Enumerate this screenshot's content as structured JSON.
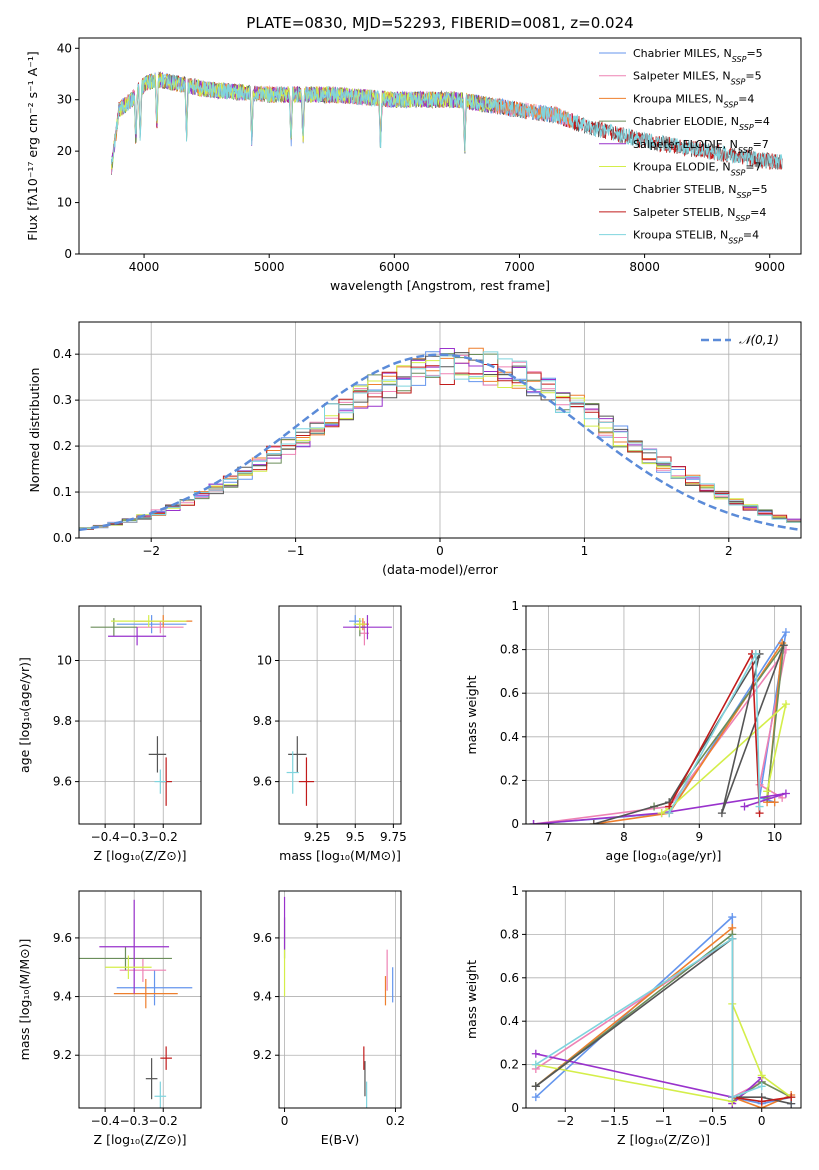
{
  "figure_title": "PLATE=0830, MJD=52293, FIBERID=0081, z=0.024",
  "colors": [
    "#6495ed",
    "#ee82b4",
    "#ee7f2d",
    "#6b8e5a",
    "#9932cc",
    "#d4ee4a",
    "#555555",
    "#c11b1b",
    "#7fd4de"
  ],
  "chart_data": [
    {
      "id": "spectrum",
      "type": "line",
      "title": "PLATE=0830, MJD=52293, FIBERID=0081, z=0.024",
      "xlabel": "wavelength [Angstrom, rest frame]",
      "ylabel": "Flux [fλ10⁻¹⁷ erg cm⁻² s⁻¹ A⁻¹]",
      "xlim": [
        3480,
        9250
      ],
      "ylim": [
        0,
        42
      ],
      "xticks": [
        4000,
        5000,
        6000,
        7000,
        8000,
        9000
      ],
      "yticks": [
        0,
        10,
        20,
        30,
        40
      ],
      "legend_position": "top-right",
      "series": [
        {
          "name": "Chabrier MILES, N_SSP=5",
          "x_range": [
            3740,
            7420
          ]
        },
        {
          "name": "Salpeter MILES, N_SSP=5",
          "x_range": [
            3740,
            7420
          ]
        },
        {
          "name": "Kroupa MILES, N_SSP=4",
          "x_range": [
            3740,
            7420
          ]
        },
        {
          "name": "Chabrier ELODIE, N_SSP=4",
          "x_range": [
            3740,
            6800
          ]
        },
        {
          "name": "Salpeter ELODIE, N_SSP=7",
          "x_range": [
            3740,
            6800
          ]
        },
        {
          "name": "Kroupa ELODIE, N_SSP=7",
          "x_range": [
            3740,
            6800
          ]
        },
        {
          "name": "Chabrier STELIB, N_SSP=5",
          "x_range": [
            3740,
            9100
          ]
        },
        {
          "name": "Salpeter STELIB, N_SSP=4",
          "x_range": [
            3740,
            9100
          ]
        },
        {
          "name": "Kroupa STELIB, N_SSP=4",
          "x_range": [
            3740,
            9100
          ]
        }
      ],
      "continuum_points": [
        [
          3740,
          17
        ],
        [
          3800,
          28
        ],
        [
          3900,
          30
        ],
        [
          4000,
          33
        ],
        [
          4100,
          34
        ],
        [
          4300,
          33
        ],
        [
          4500,
          32
        ],
        [
          5000,
          31
        ],
        [
          5500,
          31
        ],
        [
          6000,
          30
        ],
        [
          6500,
          30
        ],
        [
          7000,
          28
        ],
        [
          7300,
          27
        ],
        [
          7500,
          25
        ],
        [
          8000,
          22
        ],
        [
          8500,
          20
        ],
        [
          9000,
          18
        ],
        [
          9100,
          18
        ]
      ]
    },
    {
      "id": "residuals",
      "type": "histogram",
      "xlabel": "(data-model)/error",
      "ylabel": "Normed distribution",
      "xlim": [
        -2.5,
        2.5
      ],
      "ylim": [
        0,
        0.47
      ],
      "xticks": [
        -2,
        -1,
        0,
        1,
        2
      ],
      "yticks": [
        0.0,
        0.1,
        0.2,
        0.3,
        0.4
      ],
      "legend": "𝒩(0,1)",
      "gaussian": {
        "mean": 0,
        "sigma": 1
      },
      "bin_width": 0.1
    },
    {
      "id": "age_vs_Z",
      "type": "scatter",
      "xlabel": "Z [log₁₀(Z/Z⊙)]",
      "ylabel": "age  [log₁₀(age/yr)]",
      "xlim": [
        -0.49,
        -0.07
      ],
      "ylim": [
        9.46,
        10.18
      ],
      "xticks": [
        -0.4,
        -0.3,
        -0.2
      ],
      "yticks": [
        9.6,
        9.8,
        10.0
      ],
      "points": [
        {
          "x": -0.24,
          "y": 10.12,
          "xerr": 0.12,
          "yerr": 0.03
        },
        {
          "x": -0.21,
          "y": 10.11,
          "xerr": 0.08,
          "yerr": 0.02
        },
        {
          "x": -0.2,
          "y": 10.13,
          "xerr": 0.1,
          "yerr": 0.02
        },
        {
          "x": -0.37,
          "y": 10.11,
          "xerr": 0.08,
          "yerr": 0.03
        },
        {
          "x": -0.29,
          "y": 10.08,
          "xerr": 0.1,
          "yerr": 0.03
        },
        {
          "x": -0.25,
          "y": 10.13,
          "xerr": 0.13,
          "yerr": 0.02
        },
        {
          "x": -0.22,
          "y": 9.69,
          "xerr": 0.03,
          "yerr": 0.06
        },
        {
          "x": -0.19,
          "y": 9.6,
          "xerr": 0.02,
          "yerr": 0.08
        },
        {
          "x": -0.21,
          "y": 9.6,
          "xerr": 0.02,
          "yerr": 0.04
        }
      ]
    },
    {
      "id": "age_vs_mass",
      "type": "scatter",
      "xlabel": "mass [log₁₀(M/M⊙)]",
      "ylabel": "",
      "xlim": [
        9.0,
        9.8
      ],
      "ylim": [
        9.46,
        10.18
      ],
      "xticks": [
        9.25,
        9.5,
        9.75
      ],
      "yticks": [
        9.6,
        9.8,
        10.0
      ],
      "points": [
        {
          "x": 9.5,
          "y": 10.13,
          "xerr": 0.04,
          "yerr": 0.02
        },
        {
          "x": 9.56,
          "y": 10.09,
          "xerr": 0.03,
          "yerr": 0.04
        },
        {
          "x": 9.55,
          "y": 10.12,
          "xerr": 0.04,
          "yerr": 0.02
        },
        {
          "x": 9.53,
          "y": 10.11,
          "xerr": 0.04,
          "yerr": 0.03
        },
        {
          "x": 9.58,
          "y": 10.11,
          "xerr": 0.16,
          "yerr": 0.04
        },
        {
          "x": 9.53,
          "y": 10.12,
          "xerr": 0.04,
          "yerr": 0.02
        },
        {
          "x": 9.12,
          "y": 9.69,
          "xerr": 0.06,
          "yerr": 0.06
        },
        {
          "x": 9.18,
          "y": 9.6,
          "xerr": 0.05,
          "yerr": 0.08
        },
        {
          "x": 9.09,
          "y": 9.63,
          "xerr": 0.04,
          "yerr": 0.07
        }
      ]
    },
    {
      "id": "weight_vs_age",
      "type": "line",
      "xlabel": "age  [log₁₀(age/yr)]",
      "ylabel": "mass weight",
      "xlim": [
        6.7,
        10.35
      ],
      "ylim": [
        0,
        1
      ],
      "xticks": [
        7,
        8,
        9,
        10
      ],
      "yticks": [
        0.0,
        0.2,
        0.4,
        0.6,
        0.8,
        1.0
      ],
      "series": [
        {
          "x": [
            6.8,
            8.6,
            10.15,
            9.8,
            10.0
          ],
          "y": [
            0.0,
            0.05,
            0.88,
            0.12,
            0.1
          ]
        },
        {
          "x": [
            6.8,
            8.6,
            10.15,
            9.8,
            10.1
          ],
          "y": [
            0.0,
            0.08,
            0.8,
            0.18,
            0.12
          ]
        },
        {
          "x": [
            7.6,
            8.6,
            10.1,
            9.9,
            10.0
          ],
          "y": [
            0.0,
            0.05,
            0.83,
            0.1,
            0.1
          ]
        },
        {
          "x": [
            8.4,
            8.6,
            10.12,
            9.9
          ],
          "y": [
            0.08,
            0.1,
            0.82,
            0.12
          ]
        },
        {
          "x": [
            6.8,
            8.5,
            10.15,
            9.6
          ],
          "y": [
            0.0,
            0.05,
            0.14,
            0.08
          ]
        },
        {
          "x": [
            8.5,
            8.6,
            10.15,
            9.9
          ],
          "y": [
            0.05,
            0.07,
            0.55,
            0.15
          ]
        },
        {
          "x": [
            7.6,
            8.6,
            9.8,
            9.3,
            10.12
          ],
          "y": [
            0.0,
            0.1,
            0.78,
            0.05,
            0.82
          ]
        },
        {
          "x": [
            8.6,
            9.7,
            9.8
          ],
          "y": [
            0.08,
            0.78,
            0.05
          ]
        },
        {
          "x": [
            8.6,
            9.75,
            9.8
          ],
          "y": [
            0.05,
            0.78,
            0.08
          ]
        }
      ]
    },
    {
      "id": "mass_vs_Z",
      "type": "scatter",
      "xlabel": "Z [log₁₀(Z/Z⊙)]",
      "ylabel": "mass [log₁₀(M/M⊙)]",
      "xlim": [
        -0.49,
        -0.07
      ],
      "ylim": [
        9.02,
        9.76
      ],
      "xticks": [
        -0.4,
        -0.3,
        -0.2
      ],
      "yticks": [
        9.2,
        9.4,
        9.6
      ],
      "points": [
        {
          "x": -0.23,
          "y": 9.43,
          "xerr": 0.13,
          "yerr": 0.06
        },
        {
          "x": -0.27,
          "y": 9.49,
          "xerr": 0.08,
          "yerr": 0.04
        },
        {
          "x": -0.26,
          "y": 9.41,
          "xerr": 0.11,
          "yerr": 0.05
        },
        {
          "x": -0.33,
          "y": 9.53,
          "xerr": 0.16,
          "yerr": 0.04
        },
        {
          "x": -0.3,
          "y": 9.57,
          "xerr": 0.12,
          "yerr": 0.16
        },
        {
          "x": -0.32,
          "y": 9.5,
          "xerr": 0.08,
          "yerr": 0.04
        },
        {
          "x": -0.24,
          "y": 9.12,
          "xerr": 0.02,
          "yerr": 0.07
        },
        {
          "x": -0.19,
          "y": 9.19,
          "xerr": 0.02,
          "yerr": 0.04
        },
        {
          "x": -0.21,
          "y": 9.06,
          "xerr": 0.02,
          "yerr": 0.05
        }
      ]
    },
    {
      "id": "mass_vs_EBV",
      "type": "scatter",
      "xlabel": "E(B-V)",
      "ylabel": "",
      "xlim": [
        -0.01,
        0.21
      ],
      "ylim": [
        9.02,
        9.76
      ],
      "xticks": [
        0.0,
        0.2
      ],
      "yticks": [
        9.2,
        9.4,
        9.6
      ],
      "points": [
        {
          "x": 0.195,
          "y": 9.44,
          "xerr": 0.0,
          "yerr": 0.06
        },
        {
          "x": 0.185,
          "y": 9.49,
          "xerr": 0.0,
          "yerr": 0.07
        },
        {
          "x": 0.182,
          "y": 9.42,
          "xerr": 0.0,
          "yerr": 0.05
        },
        {
          "x": 0.0,
          "y": 9.6,
          "xerr": 0.0,
          "yerr": 0.07
        },
        {
          "x": 0.0,
          "y": 9.65,
          "xerr": 0.0,
          "yerr": 0.09
        },
        {
          "x": 0.0,
          "y": 9.48,
          "xerr": 0.0,
          "yerr": 0.08
        },
        {
          "x": 0.145,
          "y": 9.12,
          "xerr": 0.0,
          "yerr": 0.06
        },
        {
          "x": 0.143,
          "y": 9.19,
          "xerr": 0.0,
          "yerr": 0.04
        },
        {
          "x": 0.148,
          "y": 9.06,
          "xerr": 0.0,
          "yerr": 0.05
        }
      ]
    },
    {
      "id": "weight_vs_Z",
      "type": "line",
      "xlabel": "Z [log₁₀(Z/Z⊙)]",
      "ylabel": "mass weight",
      "xlim": [
        -2.4,
        0.4
      ],
      "ylim": [
        0,
        1
      ],
      "xticks": [
        -2.0,
        -1.5,
        -1.0,
        -0.5,
        0.0
      ],
      "yticks": [
        0.0,
        0.2,
        0.4,
        0.6,
        0.8,
        1.0
      ],
      "series": [
        {
          "x": [
            -2.3,
            -0.3,
            -0.3,
            0.0,
            0.3,
            0.3
          ],
          "y": [
            0.05,
            0.88,
            0.05,
            0.02,
            0.05,
            0.02
          ]
        },
        {
          "x": [
            -2.3,
            -0.3,
            -0.3,
            0.0,
            0.3
          ],
          "y": [
            0.18,
            0.78,
            0.05,
            0.12,
            0.05
          ]
        },
        {
          "x": [
            -2.3,
            -0.3,
            -0.3,
            0.0,
            0.3
          ],
          "y": [
            0.1,
            0.83,
            0.05,
            0.0,
            0.06
          ]
        },
        {
          "x": [
            -2.3,
            -0.3,
            -0.3,
            0.0,
            0.3
          ],
          "y": [
            0.1,
            0.8,
            0.03,
            0.12,
            0.05
          ]
        },
        {
          "x": [
            -2.3,
            -0.3,
            -0.3,
            0.0
          ],
          "y": [
            0.25,
            0.05,
            0.02,
            0.14
          ]
        },
        {
          "x": [
            -2.3,
            -0.3,
            -0.3,
            0.0,
            0.3
          ],
          "y": [
            0.2,
            0.03,
            0.48,
            0.15,
            0.05
          ]
        },
        {
          "x": [
            -2.3,
            -0.3,
            -0.3,
            0.0,
            0.3
          ],
          "y": [
            0.1,
            0.78,
            0.05,
            0.05,
            0.02
          ]
        },
        {
          "x": [
            -0.3,
            0.0,
            0.3
          ],
          "y": [
            0.05,
            0.03,
            0.05
          ]
        },
        {
          "x": [
            -2.3,
            -0.3,
            -0.3,
            0.0
          ],
          "y": [
            0.2,
            0.78,
            0.05,
            0.1
          ]
        }
      ]
    }
  ]
}
